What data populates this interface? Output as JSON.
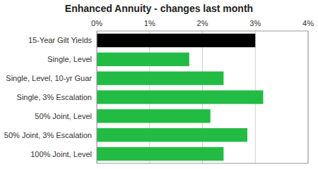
{
  "chart_data": {
    "type": "bar",
    "orientation": "horizontal",
    "title": "Enhanced Annuity - changes last month",
    "categories": [
      "15-Year Gilt Yields",
      "Single, Level",
      "Single, Level, 10-yr Guar",
      "Single, 3% Escalation",
      "50% Joint, Level",
      "50% Joint, 3% Escalation",
      "100% Joint, Level"
    ],
    "values": [
      3.0,
      1.75,
      2.4,
      3.15,
      2.15,
      2.85,
      2.4
    ],
    "colors": [
      "#000000",
      "#22bb44",
      "#22bb44",
      "#22bb44",
      "#22bb44",
      "#22bb44",
      "#22bb44"
    ],
    "xlim": [
      0,
      4
    ],
    "xticks": [
      {
        "value": 0,
        "label": "0%"
      },
      {
        "value": 1,
        "label": "1%"
      },
      {
        "value": 2,
        "label": "2%"
      },
      {
        "value": 3,
        "label": "3%"
      },
      {
        "value": 4,
        "label": "4%"
      }
    ],
    "grid": true
  }
}
